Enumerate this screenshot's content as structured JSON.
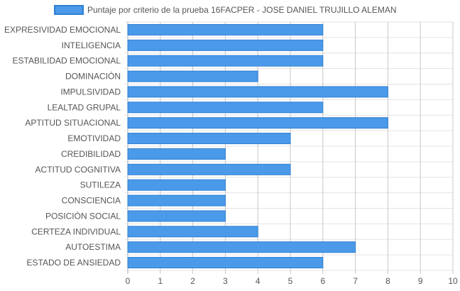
{
  "chart_data": {
    "type": "bar",
    "orientation": "horizontal",
    "title": "",
    "xlabel": "",
    "ylabel": "",
    "legend_position": "top",
    "grid": true,
    "xlim": [
      0,
      10
    ],
    "x_ticks": [
      "0",
      "1",
      "2",
      "3",
      "4",
      "5",
      "6",
      "7",
      "8",
      "9",
      "10"
    ],
    "categories": [
      "EXPRESIVIDAD EMOCIONAL",
      "INTELIGENCIA",
      "ESTABILIDAD EMOCIONAL",
      "DOMINACIÓN",
      "IMPULSIVIDAD",
      "LEALTAD GRUPAL",
      "APTITUD SITUACIONAL",
      "EMOTIVIDAD",
      "CREDIBILIDAD",
      "ACTITUD COGNITIVA",
      "SUTILEZA",
      "CONSCIENCIA",
      "POSICIÓN SOCIAL",
      "CERTEZA INDIVIDUAL",
      "AUTOESTIMA",
      "ESTADO DE ANSIEDAD"
    ],
    "series": [
      {
        "name": "Puntaje por criterio de la prueba 16FACPER - JOSE DANIEL TRUJILLO ALEMAN",
        "color": "#4a9ae9",
        "border_color": "#2f7fd3",
        "values": [
          6,
          6,
          6,
          4,
          8,
          6,
          8,
          5,
          3,
          5,
          3,
          3,
          3,
          4,
          7,
          6
        ]
      }
    ]
  }
}
